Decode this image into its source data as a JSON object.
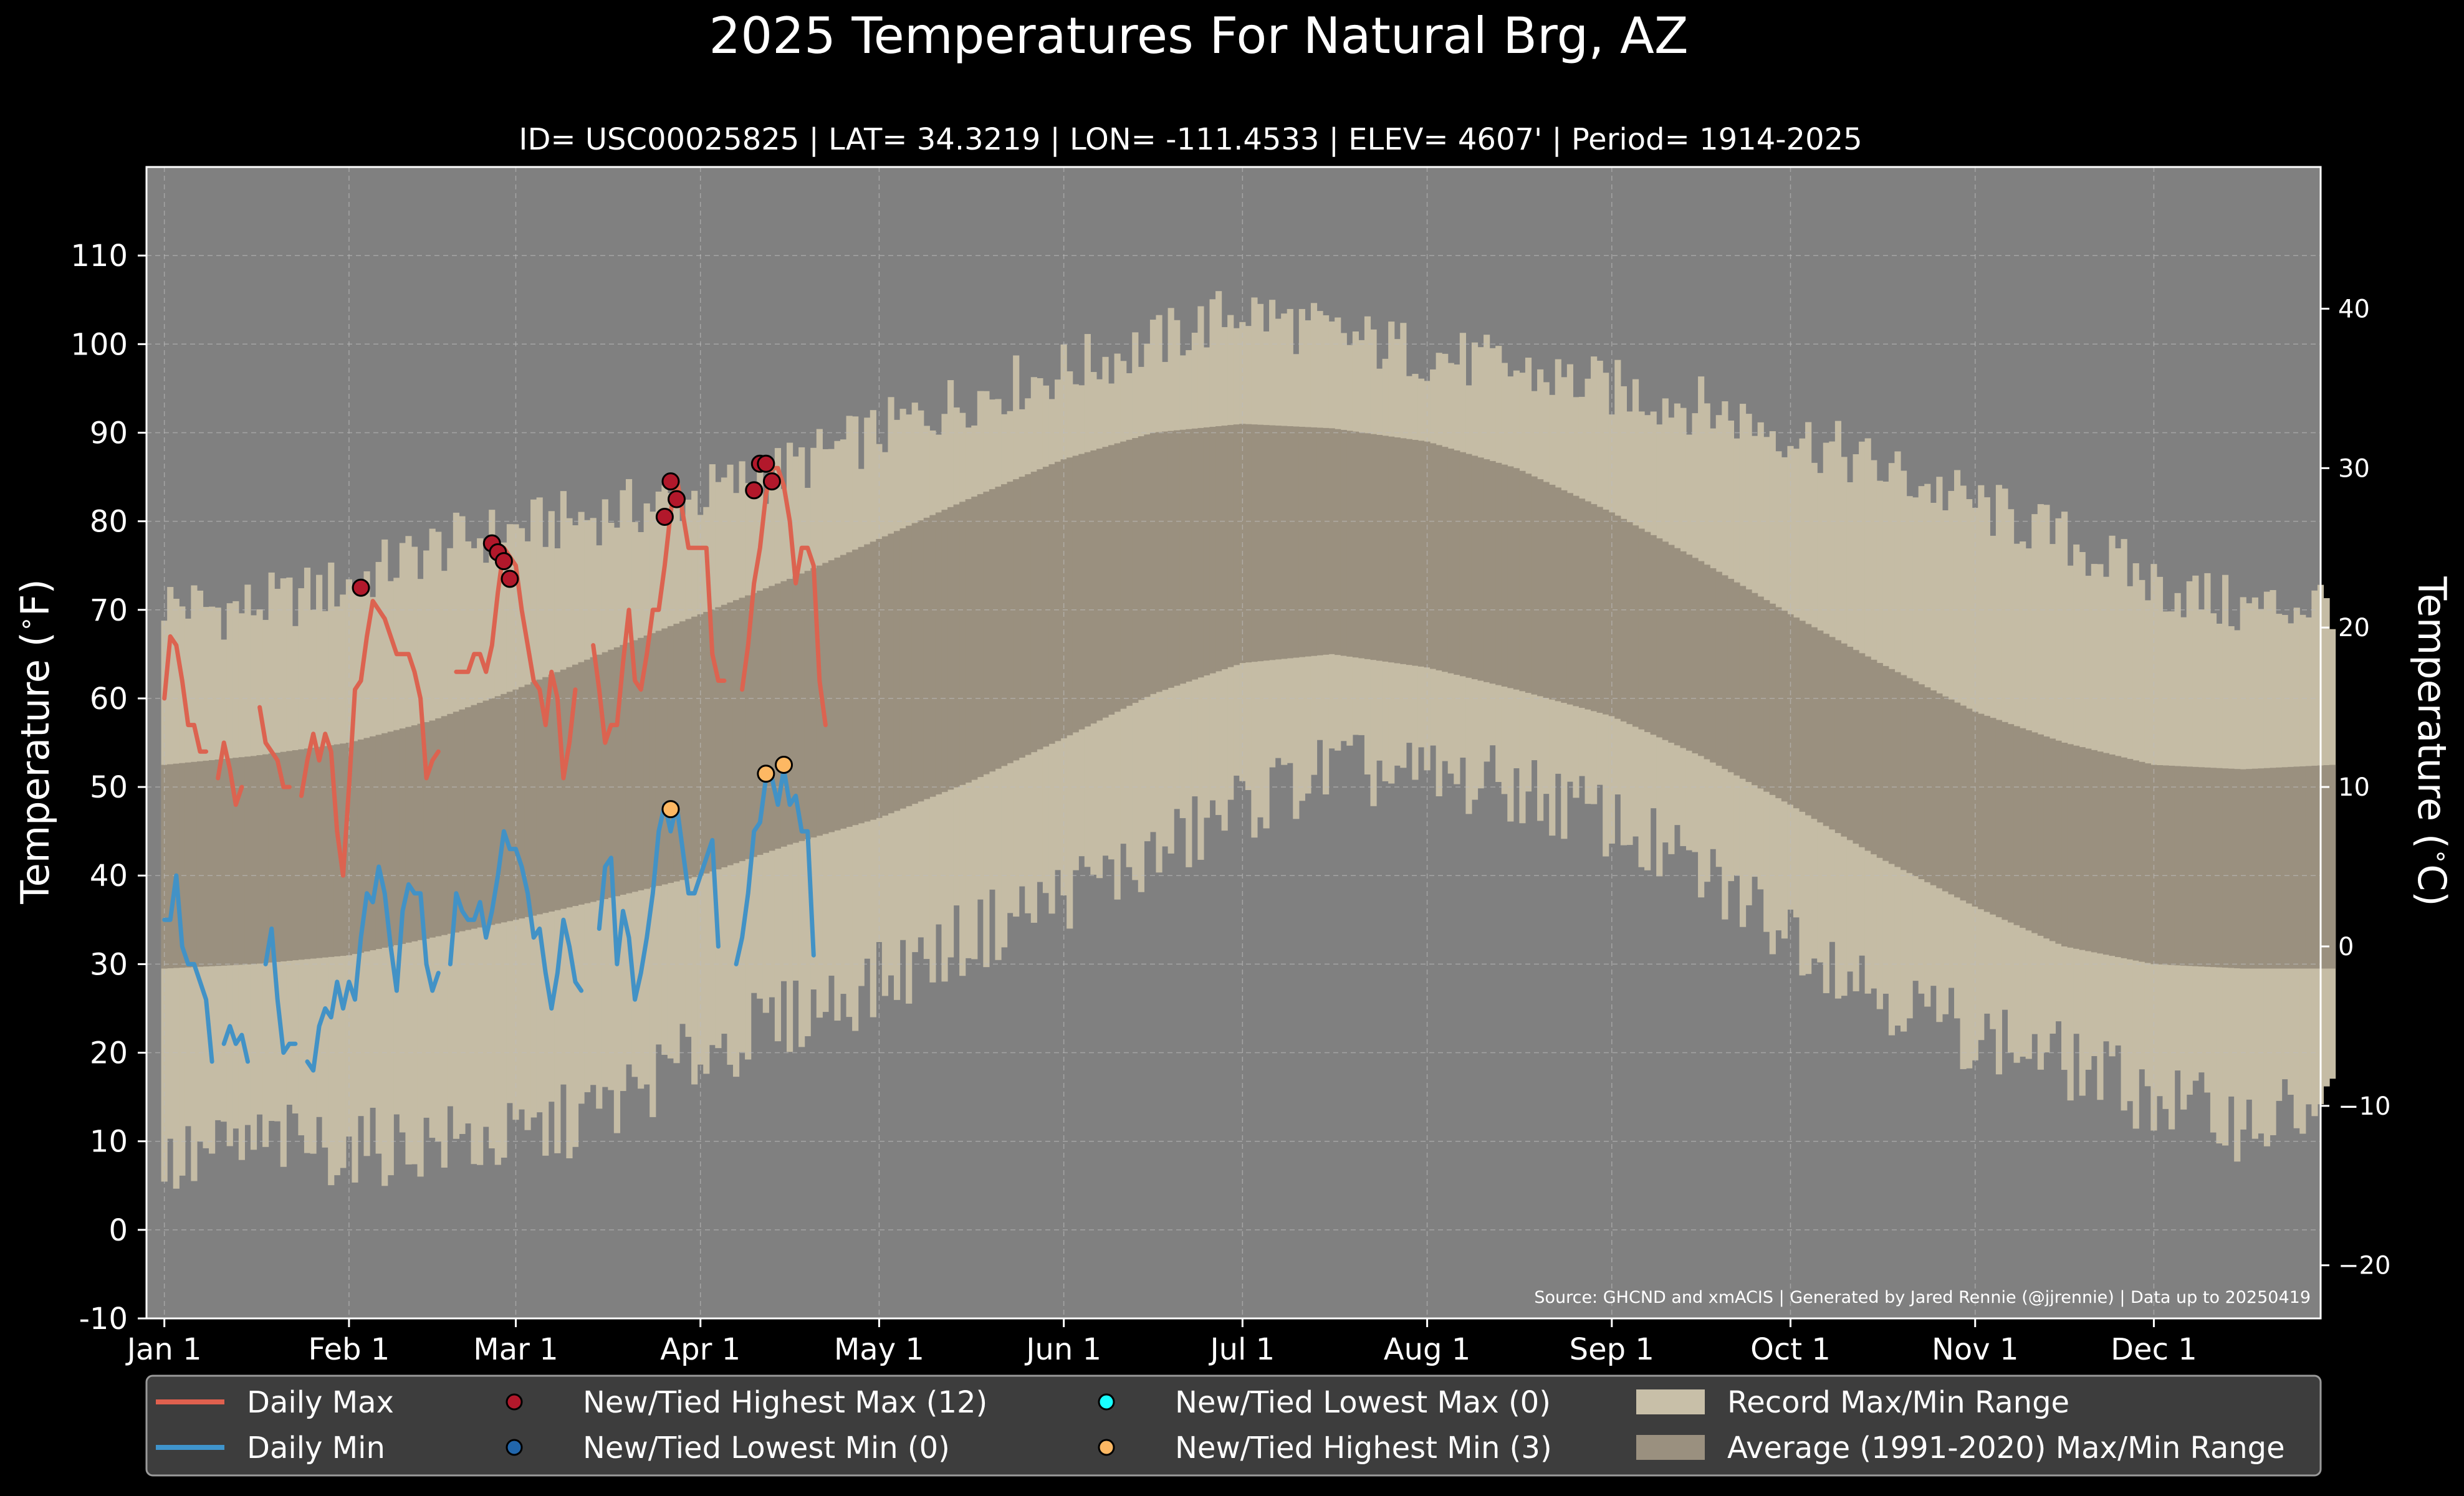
{
  "chart_data": {
    "type": "line",
    "title": "2025 Temperatures For Natural Brg, AZ",
    "subtitle": "ID= USC00025825 | LAT= 34.3219 | LON= -111.4533 | ELEV= 4607' | Period= 1914-2025",
    "ylabel": "Temperature ($^\\circ$F)",
    "ylabel_right": "Temperature ($^\\circ$C)",
    "ylim": [
      -10,
      120
    ],
    "xlim": [
      -3,
      362
    ],
    "x_tick_labels": [
      "Jan 1",
      "Feb 1",
      "Mar 1",
      "Apr 1",
      "May 1",
      "Jun 1",
      "Jul 1",
      "Aug 1",
      "Sep 1",
      "Oct 1",
      "Nov 1",
      "Dec 1"
    ],
    "x_tick_days": [
      0,
      31,
      59,
      90,
      120,
      151,
      181,
      212,
      243,
      273,
      304,
      334
    ],
    "y_ticks": [
      -10,
      0,
      10,
      20,
      30,
      40,
      50,
      60,
      70,
      80,
      90,
      100,
      110
    ],
    "y_ticks_right": [
      -20,
      -10,
      0,
      10,
      20,
      30,
      40
    ],
    "source": "Source: GHCND and xmACIS | Generated by Jared Rennie (@jjrennie) | Data up to 20250419",
    "grid": true,
    "legend_position": "bottom",
    "legend": [
      {
        "label": "Daily Max",
        "kind": "line",
        "color": "#e0604e"
      },
      {
        "label": "Daily Min",
        "kind": "line",
        "color": "#3f94cc"
      },
      {
        "label": "New/Tied Highest Max (12)",
        "kind": "dot",
        "color": "#b2182b"
      },
      {
        "label": "New/Tied Lowest Min (0)",
        "kind": "dot",
        "color": "#2166ac"
      },
      {
        "label": "New/Tied Lowest Max (0)",
        "kind": "dot",
        "color": "#18ffff"
      },
      {
        "label": "New/Tied Highest Min (3)",
        "kind": "dot",
        "color": "#fdb863"
      },
      {
        "label": "Record Max/Min Range",
        "kind": "patch",
        "color": "#c8bfa8"
      },
      {
        "label": "Average (1991-2020) Max/Min Range",
        "kind": "patch",
        "color": "#9a907f"
      }
    ],
    "colors": {
      "background": "#000000",
      "plot_bg": "#808080",
      "record_band": "#c5bca5",
      "normal_band": "#9a907f",
      "max_line": "#dc6350",
      "min_line": "#4292c6"
    },
    "record_max_anchors": {
      "day": [
        0,
        10,
        20,
        31,
        45,
        59,
        75,
        90,
        105,
        120,
        135,
        151,
        166,
        181,
        196,
        212,
        227,
        243,
        258,
        273,
        288,
        304,
        319,
        334,
        349,
        364
      ],
      "value": [
        71,
        70,
        71,
        73,
        77,
        79,
        81,
        83,
        86,
        90,
        94,
        97,
        100,
        104,
        101,
        99,
        97,
        95,
        93,
        90,
        86,
        82,
        78,
        73,
        70,
        71
      ]
    },
    "record_min_anchors": {
      "day": [
        0,
        10,
        20,
        31,
        45,
        59,
        75,
        90,
        105,
        120,
        135,
        151,
        166,
        181,
        196,
        212,
        227,
        243,
        258,
        273,
        288,
        304,
        319,
        334,
        349,
        364
      ],
      "value": [
        7,
        9,
        10,
        9,
        10,
        10,
        14,
        20,
        24,
        28,
        33,
        38,
        42,
        48,
        52,
        51,
        50,
        46,
        40,
        34,
        27,
        22,
        19,
        15,
        12,
        14
      ]
    },
    "normal_max_anchors": {
      "day": [
        0,
        15,
        31,
        45,
        59,
        75,
        90,
        105,
        120,
        135,
        151,
        166,
        181,
        196,
        212,
        227,
        243,
        258,
        273,
        288,
        304,
        319,
        334,
        349,
        364
      ],
      "value": [
        52.5,
        53.5,
        55.0,
        57.5,
        61.0,
        65.5,
        69.5,
        73.5,
        78.0,
        82.5,
        87.0,
        90.0,
        91.0,
        90.5,
        89.0,
        86.0,
        81.0,
        75.5,
        69.5,
        64.0,
        58.5,
        55.0,
        52.5,
        52.0,
        52.5
      ]
    },
    "normal_min_anchors": {
      "day": [
        0,
        15,
        31,
        45,
        59,
        75,
        90,
        105,
        120,
        135,
        151,
        166,
        181,
        196,
        212,
        227,
        243,
        258,
        273,
        288,
        304,
        319,
        334,
        349,
        364
      ],
      "value": [
        29.5,
        30.0,
        31.0,
        33.0,
        35.0,
        37.5,
        40.0,
        43.5,
        46.5,
        50.5,
        55.5,
        60.5,
        64.0,
        65.0,
        63.5,
        61.0,
        58.0,
        53.5,
        48.0,
        42.0,
        36.5,
        32.0,
        30.0,
        29.5,
        29.5
      ]
    },
    "daily_max": {
      "start_day": 0,
      "values": [
        60,
        67,
        66,
        62,
        57,
        57,
        54,
        54,
        null,
        51,
        55,
        52,
        48,
        50,
        null,
        null,
        59,
        55,
        54,
        53,
        50,
        50,
        null,
        49,
        53,
        56,
        53,
        56,
        54,
        45,
        40,
        50,
        61,
        62,
        67,
        71,
        70,
        69,
        67,
        65,
        65,
        65,
        63,
        60,
        51,
        53,
        54,
        null,
        null,
        63,
        63,
        63,
        65,
        65,
        63,
        66,
        72,
        77,
        76,
        75,
        70,
        66,
        62,
        61,
        57,
        63,
        60,
        51,
        55,
        61,
        null,
        null,
        66,
        61,
        55,
        57,
        57,
        64,
        70,
        62,
        61,
        65,
        70,
        70,
        75,
        81,
        85,
        81,
        77,
        77,
        77,
        77,
        65,
        62,
        62,
        null,
        null,
        61,
        66,
        73,
        77,
        83,
        86,
        86,
        84,
        80,
        73,
        77,
        77,
        75,
        62,
        57
      ]
    },
    "daily_min": {
      "start_day": 0,
      "values": [
        35,
        35,
        40,
        32,
        30,
        30,
        28,
        26,
        19,
        null,
        21,
        23,
        21,
        22,
        19,
        null,
        null,
        30,
        34,
        26,
        20,
        21,
        21,
        null,
        19,
        18,
        23,
        25,
        24,
        28,
        25,
        28,
        26,
        33,
        38,
        37,
        41,
        38,
        32,
        27,
        36,
        39,
        38,
        38,
        30,
        27,
        29,
        null,
        30,
        38,
        36,
        35,
        35,
        37,
        33,
        36,
        40,
        45,
        43,
        43,
        41,
        38,
        33,
        34,
        29,
        25,
        29,
        35,
        32,
        28,
        27,
        null,
        null,
        34,
        41,
        42,
        30,
        36,
        33,
        26,
        29,
        33,
        38,
        45,
        48,
        45,
        48,
        43,
        38,
        38,
        40,
        42,
        44,
        32,
        null,
        null,
        30,
        33,
        38,
        45,
        46,
        51,
        51,
        48,
        52,
        48,
        49,
        45,
        45,
        31
      ]
    },
    "record_high_max_points": [
      {
        "x": 33,
        "y": 72.5
      },
      {
        "x": 55,
        "y": 77.5
      },
      {
        "x": 56,
        "y": 76.5
      },
      {
        "x": 57,
        "y": 75.5
      },
      {
        "x": 58,
        "y": 73.5
      },
      {
        "x": 84,
        "y": 80.5
      },
      {
        "x": 85,
        "y": 84.5
      },
      {
        "x": 86,
        "y": 82.5
      },
      {
        "x": 99,
        "y": 83.5
      },
      {
        "x": 100,
        "y": 86.5
      },
      {
        "x": 101,
        "y": 86.5
      },
      {
        "x": 102,
        "y": 84.5
      }
    ],
    "record_high_min_points": [
      {
        "x": 85,
        "y": 47.5
      },
      {
        "x": 101,
        "y": 51.5
      },
      {
        "x": 104,
        "y": 52.5
      }
    ]
  }
}
